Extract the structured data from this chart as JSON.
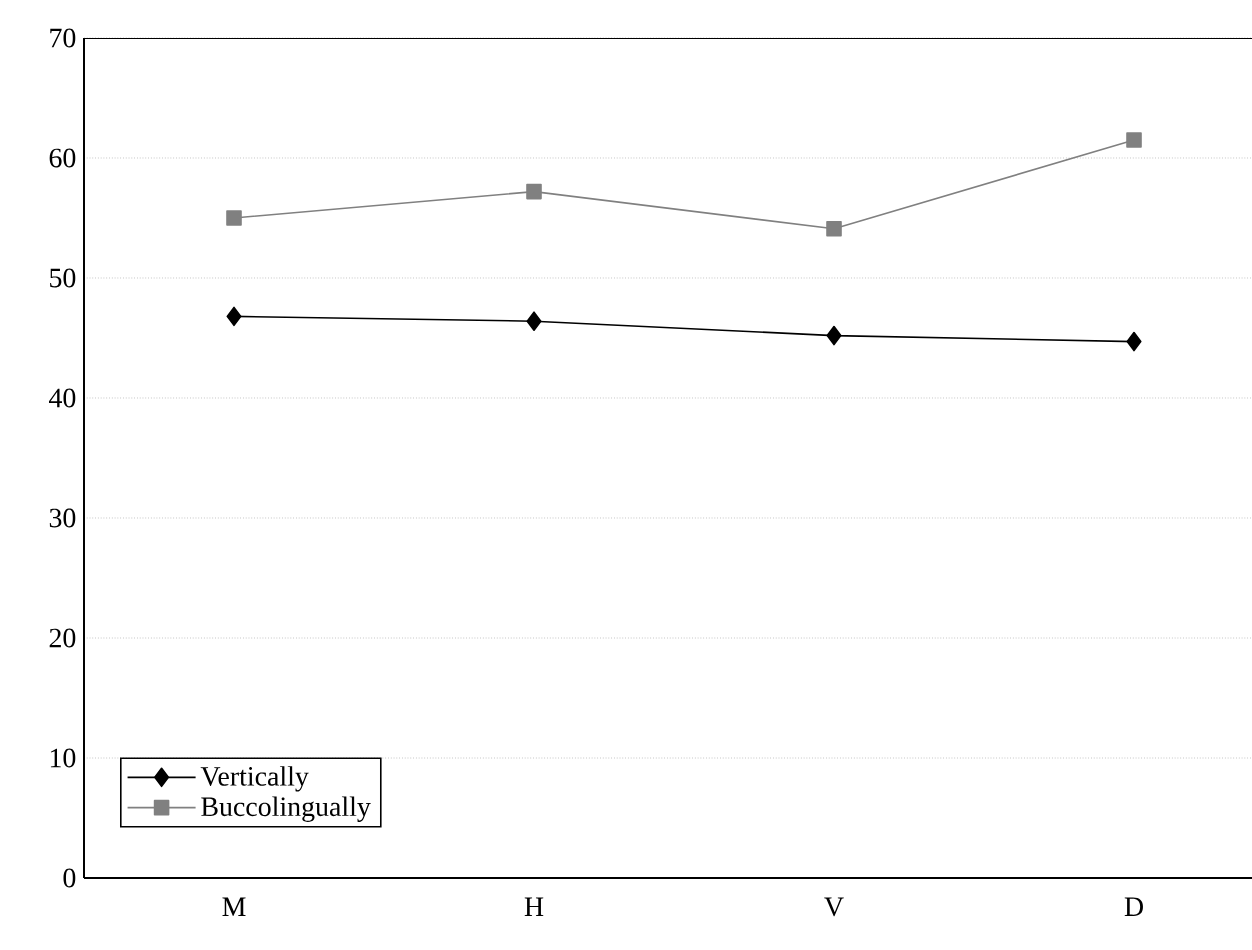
{
  "chart_data": {
    "type": "line",
    "categories": [
      "M",
      "H",
      "V",
      "D"
    ],
    "series": [
      {
        "name": "Vertically",
        "color": "#000000",
        "marker": "diamond",
        "values": [
          46.8,
          46.4,
          45.2,
          44.7
        ]
      },
      {
        "name": "Buccolingually",
        "color": "#808080",
        "marker": "square",
        "values": [
          55.0,
          57.2,
          54.1,
          61.5
        ]
      }
    ],
    "ylim": [
      0,
      70
    ],
    "yticks": [
      0,
      10,
      20,
      30,
      40,
      50,
      60,
      70
    ],
    "grid": "y",
    "legend": "bottom left",
    "line_style": "solid"
  }
}
